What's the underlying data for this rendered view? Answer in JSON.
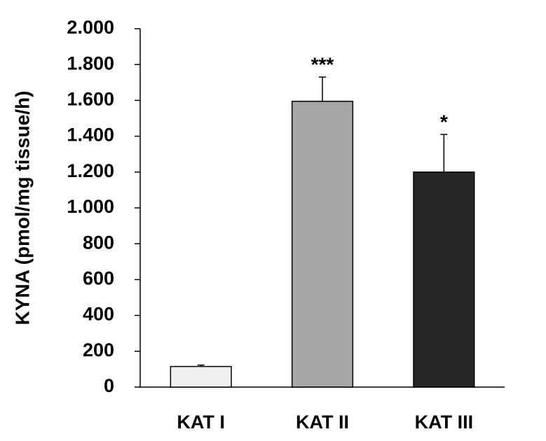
{
  "chart_data": {
    "type": "bar",
    "y_label": "KYNA (pmol/mg tissue/h)",
    "categories": [
      "KAT I",
      "KAT II",
      "KAT III"
    ],
    "values": [
      115,
      1595,
      1200
    ],
    "errors": [
      8,
      135,
      210
    ],
    "annotations": [
      null,
      "***",
      "*"
    ],
    "colors": [
      "#f0f0f0",
      "#a6a6a6",
      "#262626"
    ],
    "ylim": [
      0,
      2000
    ],
    "yticks": [
      0,
      200,
      400,
      600,
      800,
      {
        "value": 1000,
        "label": "1.000"
      },
      {
        "value": 1200,
        "label": "1.200"
      },
      {
        "value": 1400,
        "label": "1.400"
      },
      {
        "value": 1600,
        "label": "1.600"
      },
      {
        "value": 1800,
        "label": "1.800"
      },
      {
        "value": 2000,
        "label": "2.000"
      }
    ],
    "grid": false
  }
}
